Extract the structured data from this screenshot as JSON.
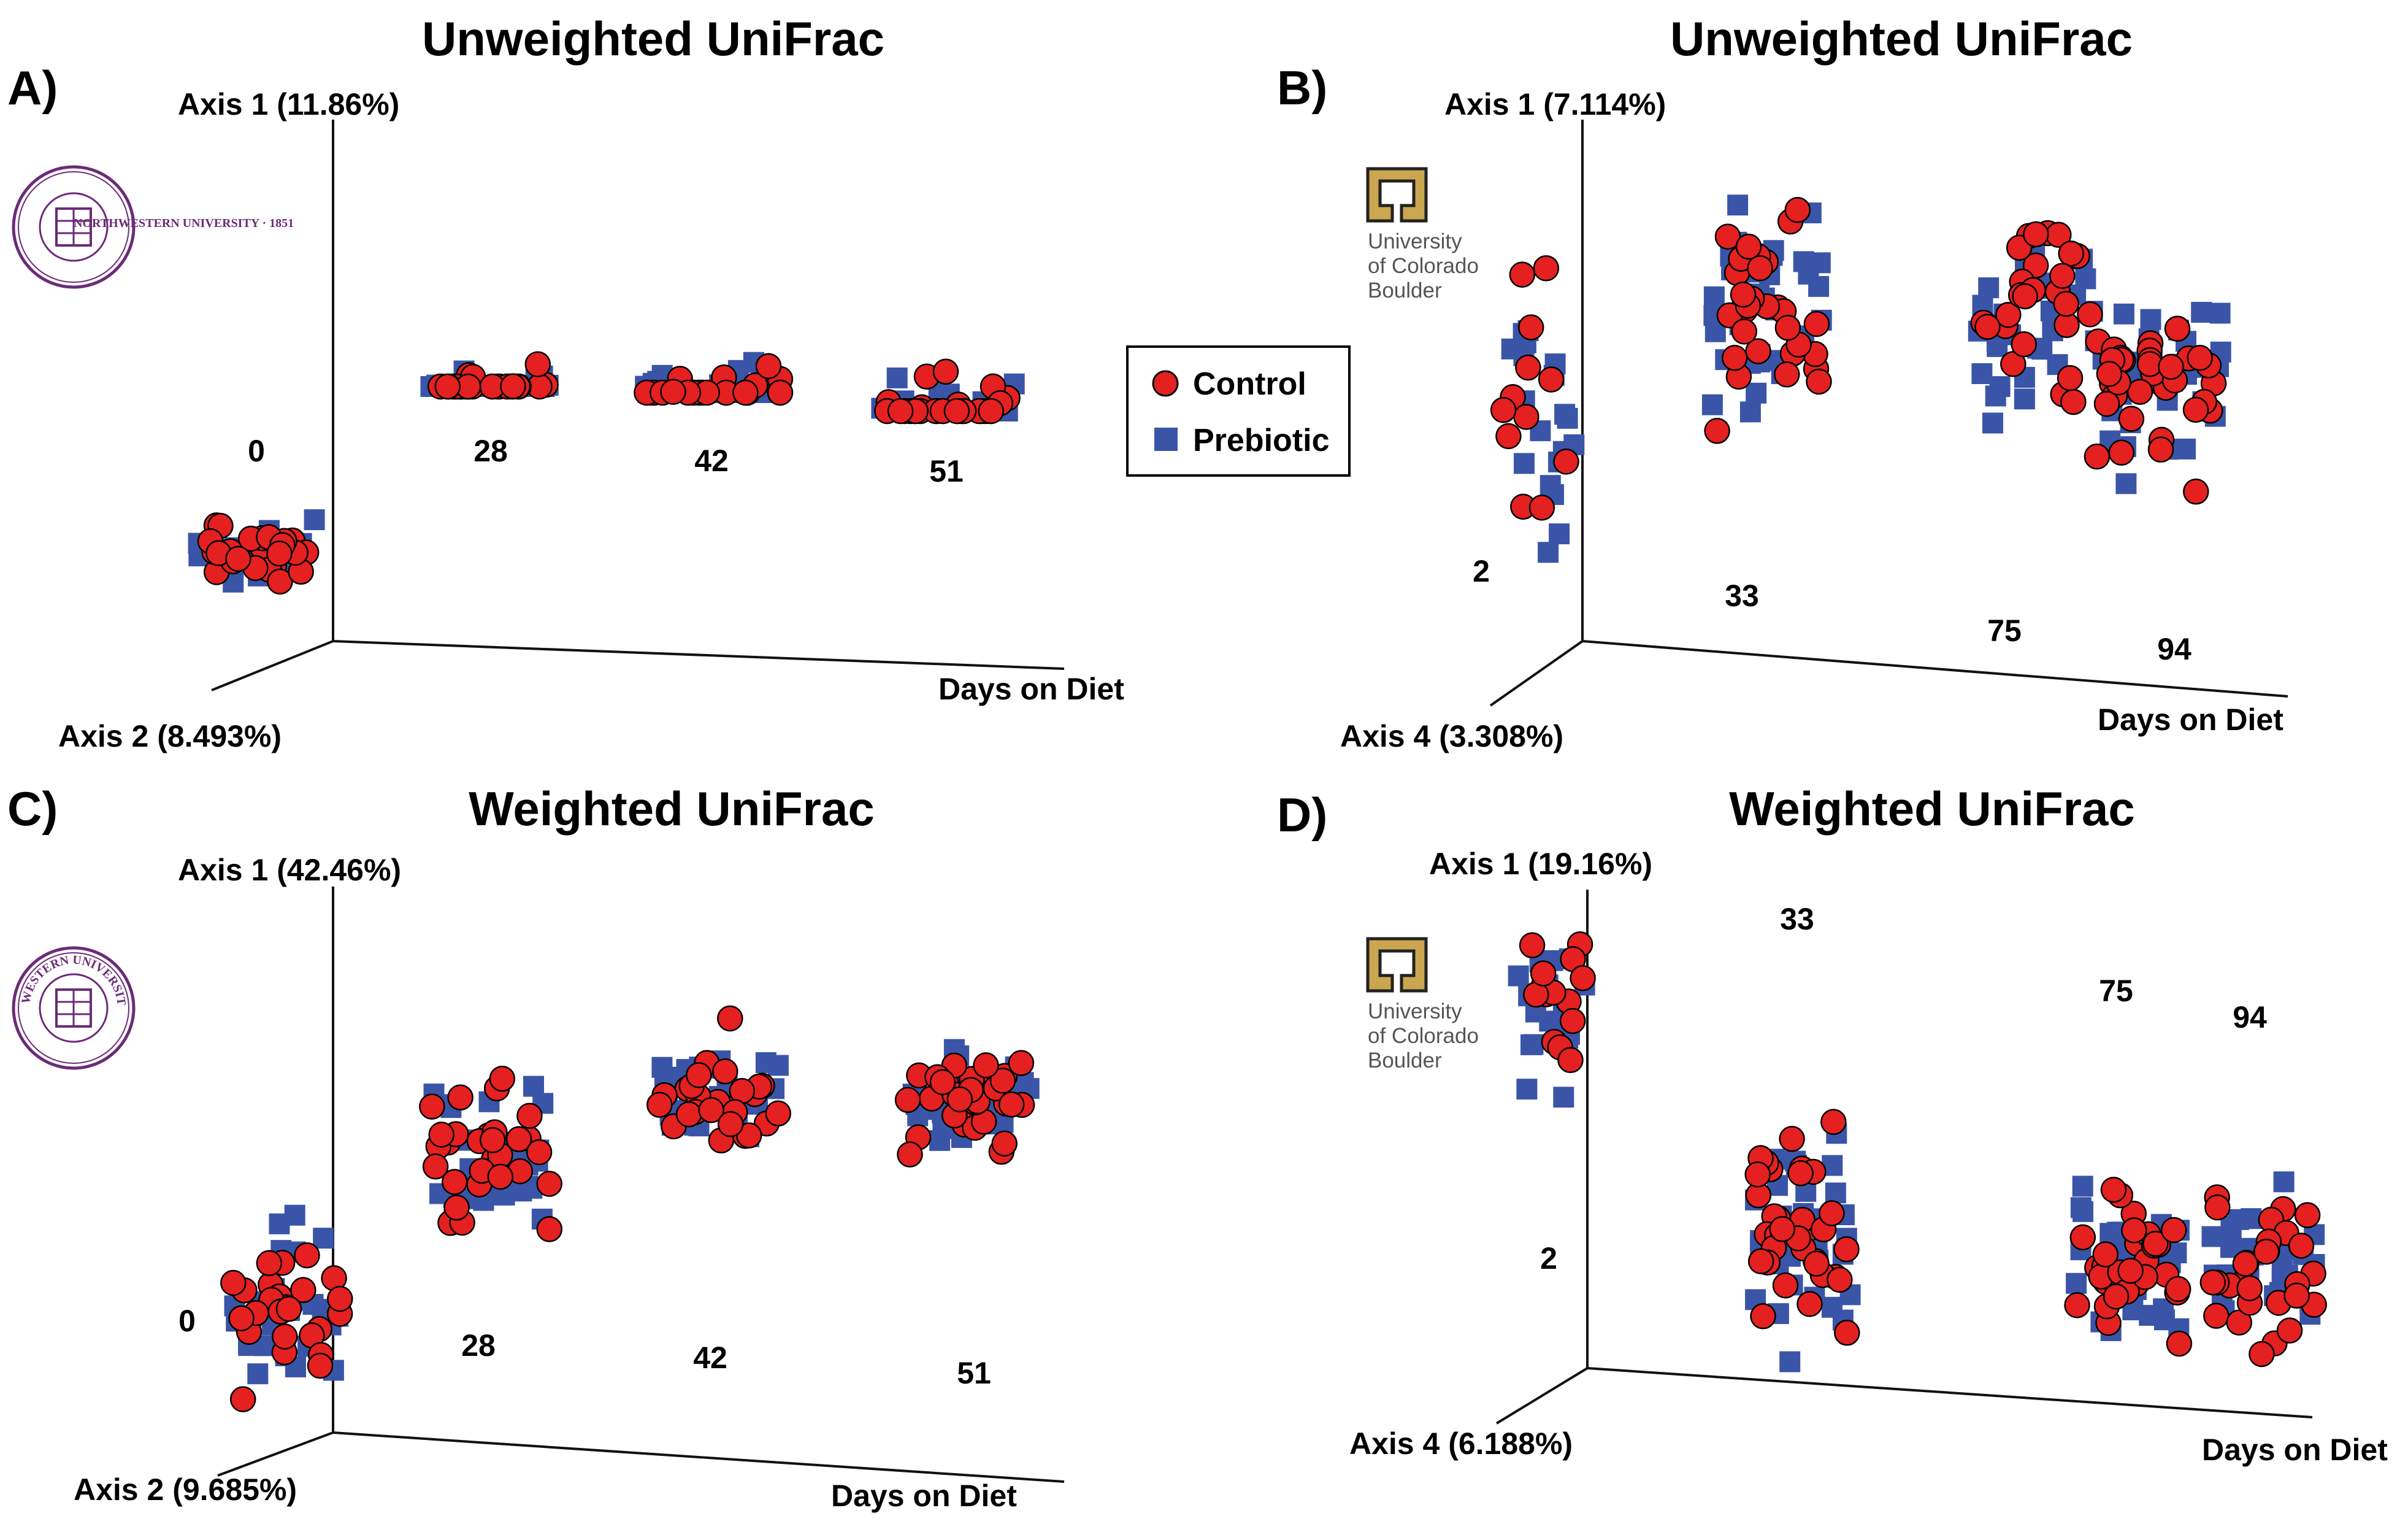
{
  "legend": {
    "items": [
      {
        "label": "Control",
        "color": "#e52020",
        "marker": "circle"
      },
      {
        "label": "Prebiotic",
        "color": "#3a55a8",
        "marker": "square"
      }
    ]
  },
  "logos": {
    "northwestern": {
      "lettering": "NORTHWESTERN UNIVERSITY · 1851"
    },
    "colorado": {
      "line1": "University",
      "line2": "of Colorado",
      "line3": "Boulder"
    }
  },
  "chart_data": [
    {
      "panel": "A)",
      "type": "scatter",
      "title": "Unweighted UniFrac",
      "metric": "Unweighted UniFrac",
      "site": "Northwestern",
      "axis_vertical": "Axis 1 (11.86%)",
      "axis_depth": "Axis 2 (8.493%)",
      "xlabel": "Days on Diet",
      "days": [
        "0",
        "28",
        "42",
        "51"
      ],
      "groups": [
        {
          "day": "0",
          "control_n": 24,
          "prebiotic_n": 26,
          "axis1_center": -0.28,
          "axis1_spread": 0.07
        },
        {
          "day": "28",
          "control_n": 28,
          "prebiotic_n": 28,
          "axis1_center": 0.1,
          "axis1_spread": 0.09
        },
        {
          "day": "42",
          "control_n": 22,
          "prebiotic_n": 30,
          "axis1_center": 0.11,
          "axis1_spread": 0.08
        },
        {
          "day": "51",
          "control_n": 28,
          "prebiotic_n": 26,
          "axis1_center": 0.05,
          "axis1_spread": 0.1
        }
      ]
    },
    {
      "panel": "B)",
      "type": "scatter",
      "title": "Unweighted UniFrac",
      "metric": "Unweighted UniFrac",
      "site": "University of Colorado Boulder",
      "axis_vertical": "Axis 1 (7.114%)",
      "axis_depth": "Axis 4 (3.308%)",
      "xlabel": "Days on Diet",
      "days": [
        "2",
        "33",
        "75",
        "94"
      ],
      "groups": [
        {
          "day": "2",
          "control_n": 12,
          "prebiotic_n": 20,
          "axis1_center": -0.05,
          "axis1_spread": 0.2
        },
        {
          "day": "33",
          "control_n": 30,
          "prebiotic_n": 34,
          "axis1_center": 0.12,
          "axis1_spread": 0.18
        },
        {
          "day": "75",
          "control_n": 26,
          "prebiotic_n": 30,
          "axis1_center": 0.12,
          "axis1_spread": 0.18
        },
        {
          "day": "94",
          "control_n": 34,
          "prebiotic_n": 36,
          "axis1_center": 0.0,
          "axis1_spread": 0.14
        }
      ]
    },
    {
      "panel": "C)",
      "type": "scatter",
      "title": "Weighted UniFrac",
      "metric": "Weighted UniFrac",
      "site": "Northwestern",
      "axis_vertical": "Axis 1 (42.46%)",
      "axis_depth": "Axis 2 (9.685%)",
      "xlabel": "Days on Diet",
      "days": [
        "0",
        "28",
        "42",
        "51"
      ],
      "groups": [
        {
          "day": "0",
          "control_n": 26,
          "prebiotic_n": 28,
          "axis1_center": -0.25,
          "axis1_spread": 0.14
        },
        {
          "day": "28",
          "control_n": 30,
          "prebiotic_n": 30,
          "axis1_center": 0.02,
          "axis1_spread": 0.14
        },
        {
          "day": "42",
          "control_n": 26,
          "prebiotic_n": 30,
          "axis1_center": 0.12,
          "axis1_spread": 0.1
        },
        {
          "day": "51",
          "control_n": 30,
          "prebiotic_n": 28,
          "axis1_center": 0.12,
          "axis1_spread": 0.1
        }
      ]
    },
    {
      "panel": "D)",
      "type": "scatter",
      "title": "Weighted UniFrac",
      "metric": "Weighted UniFrac",
      "site": "University of Colorado Boulder",
      "axis_vertical": "Axis 1 (19.16%)",
      "axis_depth": "Axis 4 (6.188%)",
      "xlabel": "Days on Diet",
      "days": [
        "2",
        "33",
        "75",
        "94"
      ],
      "groups": [
        {
          "day": "2",
          "control_n": 14,
          "prebiotic_n": 16,
          "axis1_center": 0.3,
          "axis1_spread": 0.14
        },
        {
          "day": "33",
          "control_n": 34,
          "prebiotic_n": 36,
          "axis1_center": -0.05,
          "axis1_spread": 0.18
        },
        {
          "day": "75",
          "control_n": 30,
          "prebiotic_n": 32,
          "axis1_center": -0.1,
          "axis1_spread": 0.12
        },
        {
          "day": "94",
          "control_n": 28,
          "prebiotic_n": 30,
          "axis1_center": -0.1,
          "axis1_spread": 0.13
        }
      ]
    }
  ]
}
